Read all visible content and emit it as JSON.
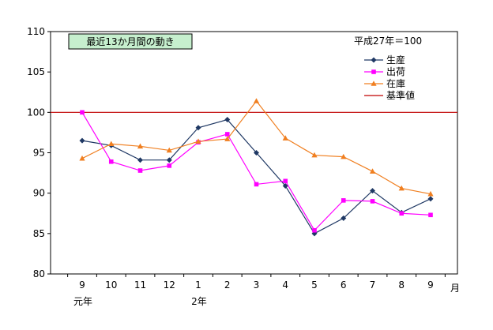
{
  "chart_data": {
    "type": "line",
    "title": "最近13か月間の動き",
    "base_note": "平成27年＝100",
    "x_unit": "月",
    "categories": [
      "9",
      "10",
      "11",
      "12",
      "1",
      "2",
      "3",
      "4",
      "5",
      "6",
      "7",
      "8",
      "9"
    ],
    "era_labels": [
      {
        "index": 0,
        "label": "元年"
      },
      {
        "index": 4,
        "label": "2年"
      }
    ],
    "ylim": [
      80,
      110
    ],
    "yticks": [
      80,
      85,
      90,
      95,
      100,
      105,
      110
    ],
    "grid": false,
    "legend_position": "top-right",
    "series": [
      {
        "name": "生産",
        "color": "#1f3864",
        "marker": "diamond",
        "values": [
          96.5,
          95.9,
          94.1,
          94.1,
          98.1,
          99.1,
          95.0,
          90.9,
          85.0,
          86.9,
          90.3,
          87.6,
          89.3
        ]
      },
      {
        "name": "出荷",
        "color": "#ff00ff",
        "marker": "square",
        "values": [
          100.0,
          93.9,
          92.8,
          93.4,
          96.3,
          97.3,
          91.1,
          91.5,
          85.4,
          89.1,
          89.0,
          87.5,
          87.3
        ]
      },
      {
        "name": "在庫",
        "color": "#f07f20",
        "marker": "triangle",
        "values": [
          94.3,
          96.1,
          95.8,
          95.3,
          96.4,
          96.7,
          101.4,
          96.8,
          94.7,
          94.5,
          92.7,
          90.6,
          89.9
        ]
      },
      {
        "name": "基準値",
        "color": "#c00000",
        "marker": "none",
        "reference": 100
      }
    ]
  }
}
